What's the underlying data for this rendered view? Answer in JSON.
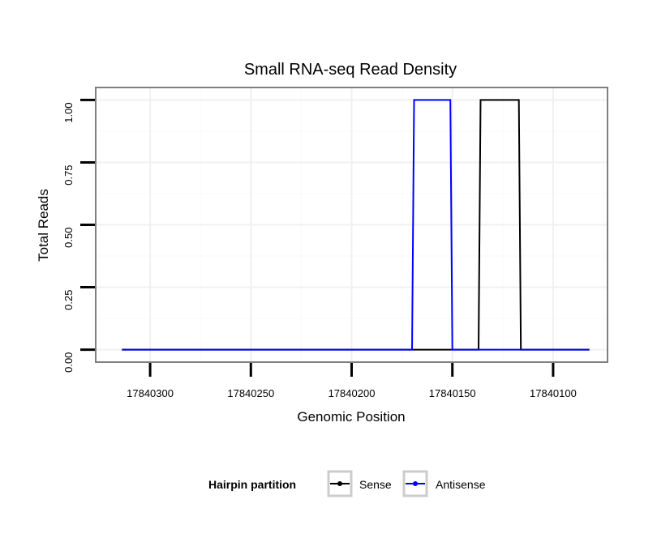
{
  "chart_data": {
    "type": "line",
    "title": "Small RNA-seq Read Density",
    "xlabel": "Genomic Position",
    "ylabel": "Total Reads",
    "x_reversed": true,
    "xlim": [
      17840327,
      17840073
    ],
    "ylim": [
      -0.05,
      1.05
    ],
    "x_ticks": [
      17840300,
      17840250,
      17840200,
      17840150,
      17840100
    ],
    "x_tick_labels": [
      "17840300",
      "17840250",
      "17840200",
      "17840150",
      "17840100"
    ],
    "y_ticks": [
      0,
      0.25,
      0.5,
      0.75,
      1
    ],
    "y_tick_labels": [
      "0.00",
      "0.25",
      "0.50",
      "0.75",
      "1.00"
    ],
    "grid": true,
    "legend": {
      "title": "Hairpin partition",
      "position": "bottom",
      "entries": [
        {
          "label": "Sense",
          "color": "#000000"
        },
        {
          "label": "Antisense",
          "color": "#0000ff"
        }
      ]
    },
    "series": [
      {
        "name": "Sense",
        "color": "#000000",
        "x": [
          17840314,
          17840137,
          17840136,
          17840117,
          17840116,
          17840082
        ],
        "y": [
          0,
          0,
          1,
          1,
          0,
          0
        ]
      },
      {
        "name": "Antisense",
        "color": "#0000ff",
        "x": [
          17840314,
          17840170,
          17840169,
          17840151,
          17840150,
          17840082
        ],
        "y": [
          0,
          0,
          1,
          1,
          0,
          0
        ]
      }
    ]
  }
}
